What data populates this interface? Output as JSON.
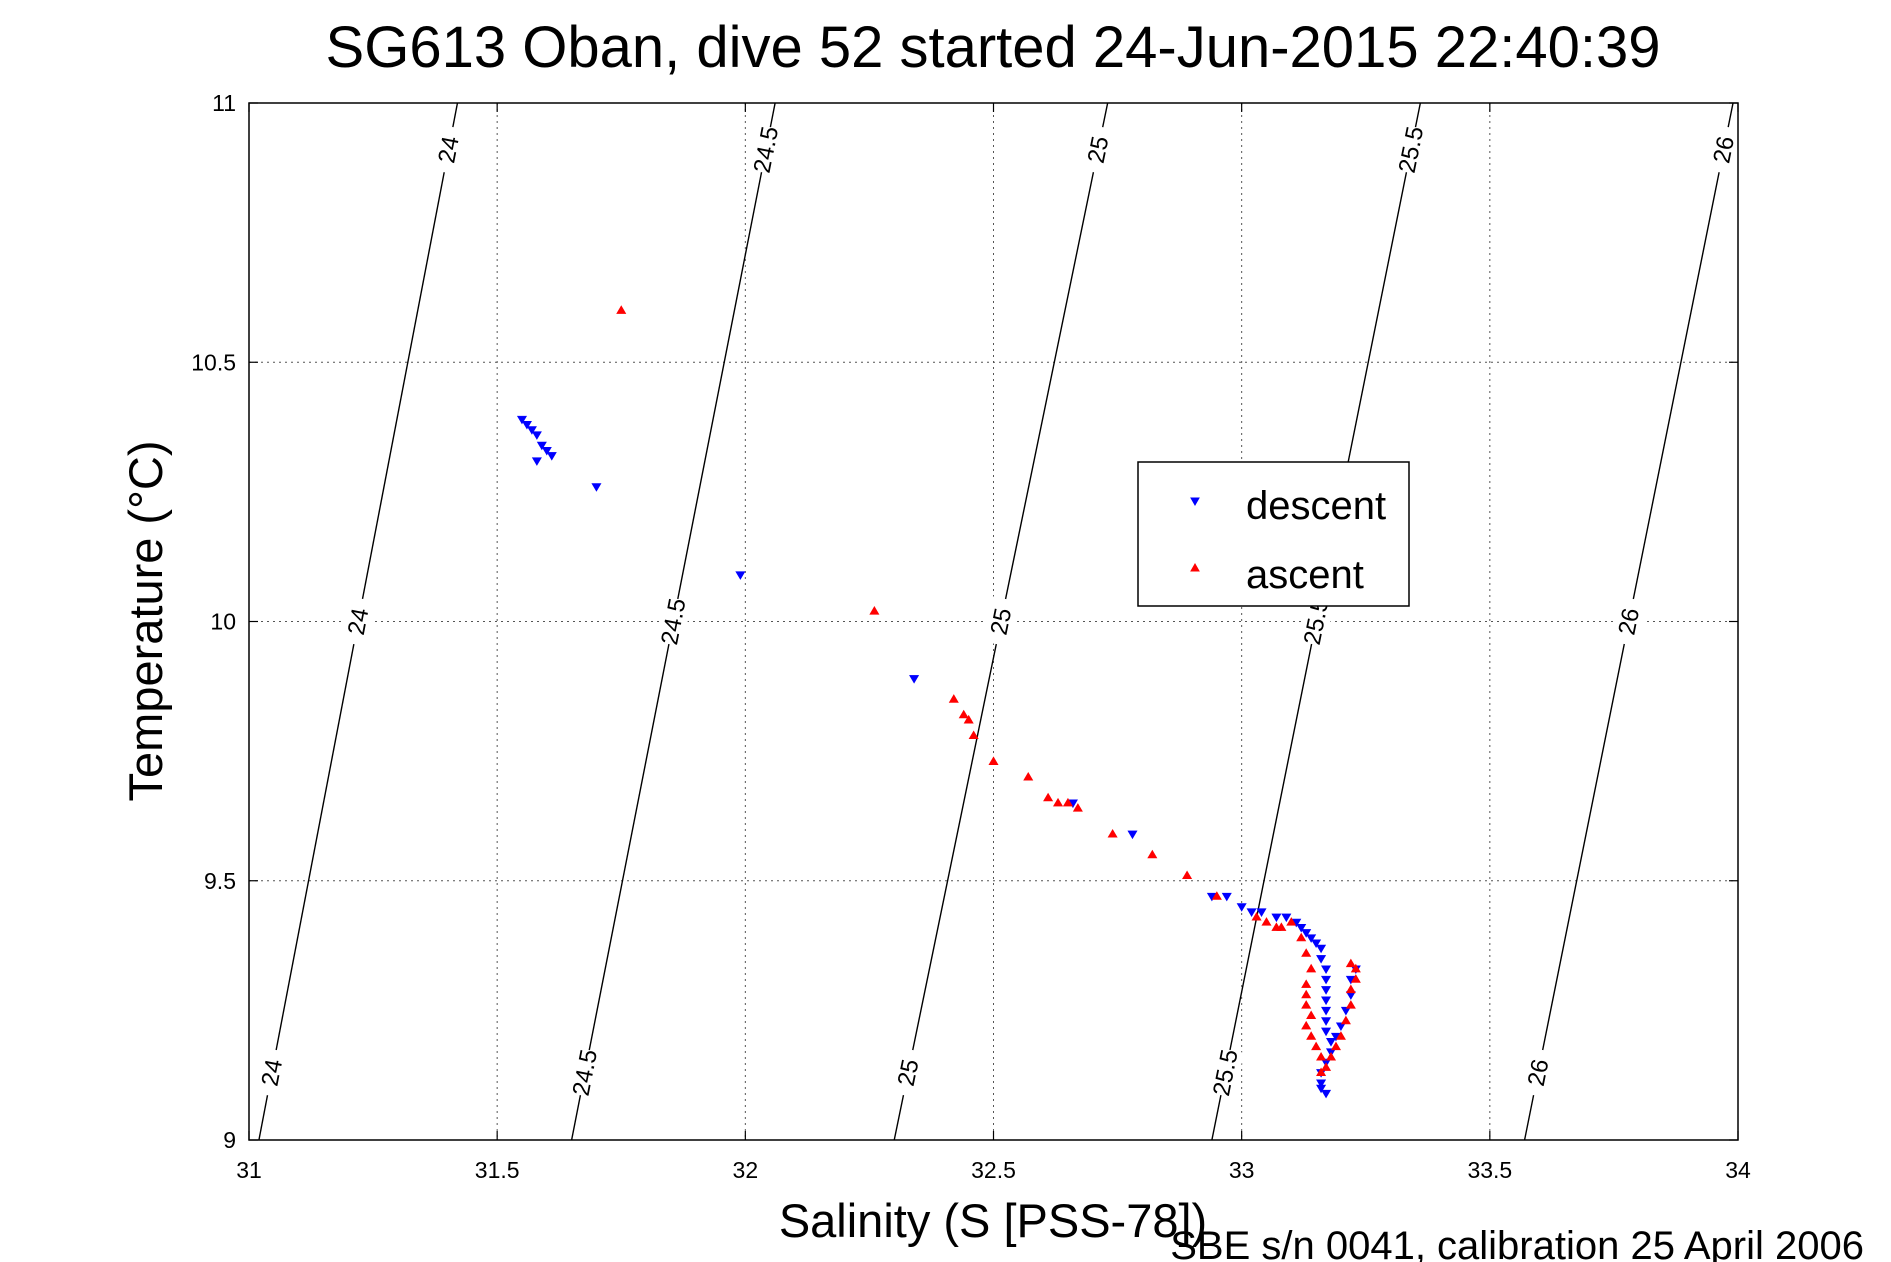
{
  "chart_data": {
    "type": "scatter",
    "title": "SG613 Oban, dive 52 started 24-Jun-2015 22:40:39",
    "xlabel": "Salinity (S [PSS-78])",
    "ylabel": "Temperature (°C)",
    "footnote": "SBE s/n 0041, calibration 25 April 2006",
    "xlim": [
      31,
      34
    ],
    "ylim": [
      9,
      11
    ],
    "xticks": [
      31,
      31.5,
      32,
      32.5,
      33,
      33.5,
      34
    ],
    "xtick_labels": [
      "31",
      "31.5",
      "32",
      "32.5",
      "33",
      "33.5",
      "34"
    ],
    "yticks": [
      9,
      9.5,
      10,
      10.5,
      11
    ],
    "ytick_labels": [
      "9",
      "9.5",
      "10",
      "10.5",
      "11"
    ],
    "grid": true,
    "legend_position": "right-center",
    "contours": {
      "description": "density isopycnals (sigma-theta)",
      "levels": [
        {
          "value": 24,
          "label": "24",
          "points": [
            [
              31.02,
              9
            ],
            [
              31.42,
              11
            ]
          ]
        },
        {
          "value": 24.5,
          "label": "24.5",
          "points": [
            [
              31.65,
              9
            ],
            [
              32.06,
              11
            ]
          ]
        },
        {
          "value": 25,
          "label": "25",
          "points": [
            [
              32.3,
              9
            ],
            [
              32.73,
              11
            ]
          ]
        },
        {
          "value": 25.5,
          "label": "25.5",
          "points": [
            [
              32.94,
              9
            ],
            [
              33.36,
              11
            ]
          ]
        },
        {
          "value": 26,
          "label": "26",
          "points": [
            [
              33.57,
              9
            ],
            [
              33.99,
              11
            ]
          ]
        }
      ]
    },
    "series": [
      {
        "name": "descent",
        "color": "#0000ff",
        "marker": "triangle-down",
        "points": [
          [
            31.55,
            10.39
          ],
          [
            31.56,
            10.38
          ],
          [
            31.57,
            10.37
          ],
          [
            31.58,
            10.36
          ],
          [
            31.59,
            10.34
          ],
          [
            31.6,
            10.33
          ],
          [
            31.58,
            10.31
          ],
          [
            31.61,
            10.32
          ],
          [
            31.7,
            10.26
          ],
          [
            31.99,
            10.09
          ],
          [
            32.34,
            9.89
          ],
          [
            32.66,
            9.65
          ],
          [
            32.78,
            9.59
          ],
          [
            32.94,
            9.47
          ],
          [
            32.97,
            9.47
          ],
          [
            33.0,
            9.45
          ],
          [
            33.02,
            9.44
          ],
          [
            33.04,
            9.44
          ],
          [
            33.07,
            9.43
          ],
          [
            33.09,
            9.43
          ],
          [
            33.11,
            9.42
          ],
          [
            33.12,
            9.41
          ],
          [
            33.13,
            9.4
          ],
          [
            33.14,
            9.39
          ],
          [
            33.15,
            9.38
          ],
          [
            33.16,
            9.37
          ],
          [
            33.16,
            9.35
          ],
          [
            33.17,
            9.33
          ],
          [
            33.17,
            9.31
          ],
          [
            33.17,
            9.29
          ],
          [
            33.17,
            9.27
          ],
          [
            33.17,
            9.25
          ],
          [
            33.17,
            9.23
          ],
          [
            33.17,
            9.21
          ],
          [
            33.18,
            9.19
          ],
          [
            33.18,
            9.17
          ],
          [
            33.17,
            9.15
          ],
          [
            33.16,
            9.13
          ],
          [
            33.16,
            9.11
          ],
          [
            33.16,
            9.1
          ],
          [
            33.17,
            9.09
          ],
          [
            33.19,
            9.2
          ],
          [
            33.2,
            9.22
          ],
          [
            33.21,
            9.25
          ],
          [
            33.22,
            9.28
          ],
          [
            33.22,
            9.31
          ],
          [
            33.23,
            9.33
          ]
        ]
      },
      {
        "name": "ascent",
        "color": "#ff0000",
        "marker": "triangle-up",
        "points": [
          [
            31.75,
            10.6
          ],
          [
            32.26,
            10.02
          ],
          [
            32.42,
            9.85
          ],
          [
            32.44,
            9.82
          ],
          [
            32.45,
            9.81
          ],
          [
            32.46,
            9.78
          ],
          [
            32.5,
            9.73
          ],
          [
            32.57,
            9.7
          ],
          [
            32.61,
            9.66
          ],
          [
            32.63,
            9.65
          ],
          [
            32.65,
            9.65
          ],
          [
            32.67,
            9.64
          ],
          [
            32.74,
            9.59
          ],
          [
            32.82,
            9.55
          ],
          [
            32.89,
            9.51
          ],
          [
            32.95,
            9.47
          ],
          [
            33.03,
            9.43
          ],
          [
            33.05,
            9.42
          ],
          [
            33.07,
            9.41
          ],
          [
            33.08,
            9.41
          ],
          [
            33.1,
            9.42
          ],
          [
            33.12,
            9.39
          ],
          [
            33.13,
            9.36
          ],
          [
            33.14,
            9.33
          ],
          [
            33.13,
            9.3
          ],
          [
            33.13,
            9.28
          ],
          [
            33.13,
            9.26
          ],
          [
            33.14,
            9.24
          ],
          [
            33.13,
            9.22
          ],
          [
            33.14,
            9.2
          ],
          [
            33.15,
            9.18
          ],
          [
            33.16,
            9.16
          ],
          [
            33.17,
            9.14
          ],
          [
            33.16,
            9.13
          ],
          [
            33.18,
            9.16
          ],
          [
            33.19,
            9.18
          ],
          [
            33.2,
            9.2
          ],
          [
            33.21,
            9.23
          ],
          [
            33.22,
            9.26
          ],
          [
            33.22,
            9.29
          ],
          [
            33.23,
            9.31
          ],
          [
            33.23,
            9.33
          ],
          [
            33.22,
            9.34
          ]
        ]
      }
    ]
  }
}
